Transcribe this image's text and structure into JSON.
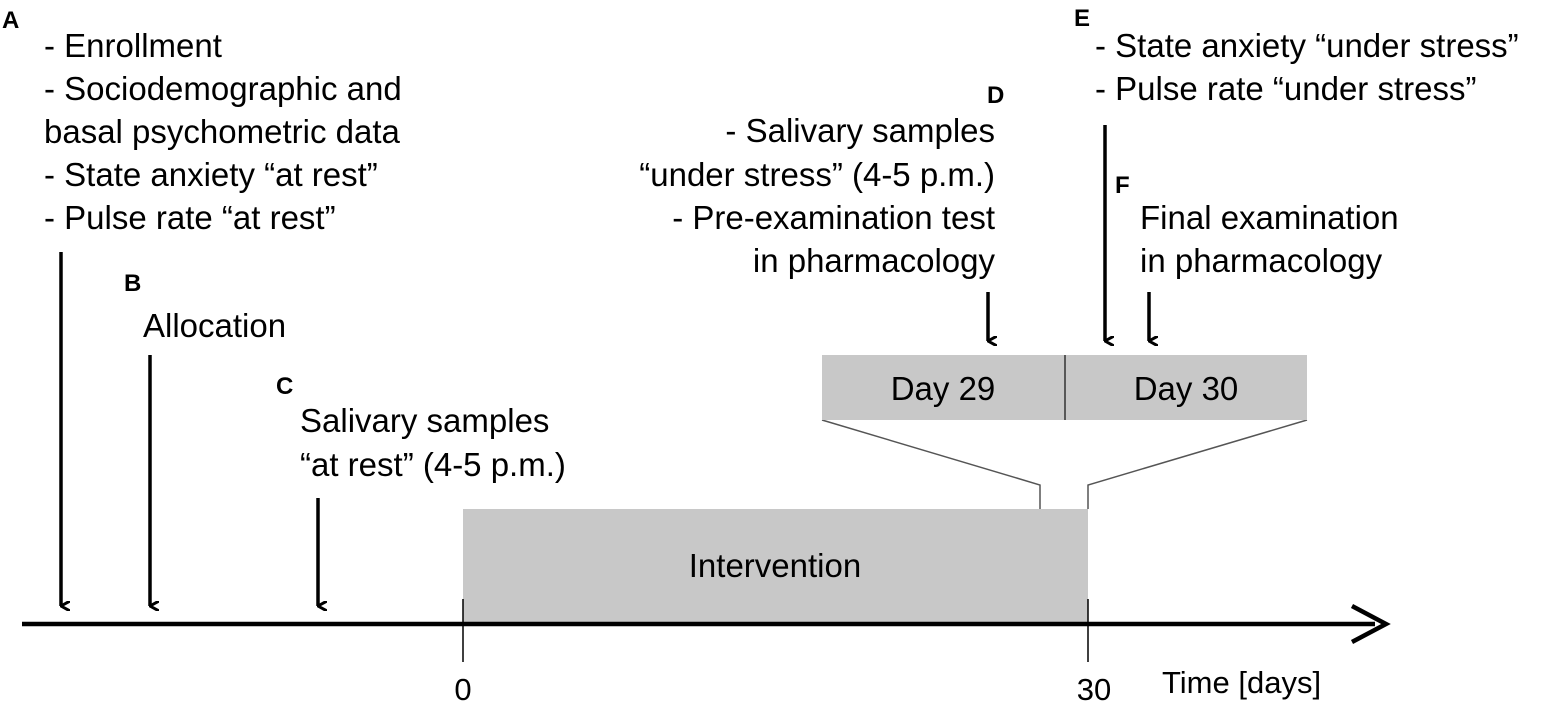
{
  "panels": {
    "A": {
      "letter": "A",
      "lines": [
        "- Enrollment",
        "- Sociodemographic and",
        "basal psychometric data",
        "- State anxiety “at rest”",
        "- Pulse rate “at rest”"
      ]
    },
    "B": {
      "letter": "B",
      "lines": [
        "Allocation"
      ]
    },
    "C": {
      "letter": "C",
      "lines": [
        "Salivary samples",
        "“at rest” (4-5 p.m.)"
      ]
    },
    "D": {
      "letter": "D",
      "lines": [
        "- Salivary samples",
        "“under stress” (4-5 p.m.)",
        "- Pre-examination test",
        "in pharmacology"
      ]
    },
    "E": {
      "letter": "E",
      "lines": [
        "- State anxiety “under stress”",
        "- Pulse rate “under stress”"
      ]
    },
    "F": {
      "letter": "F",
      "lines": [
        "Final examination",
        "in pharmacology"
      ]
    }
  },
  "boxes": {
    "intervention": "Intervention",
    "day29": "Day 29",
    "day30": "Day 30"
  },
  "axis": {
    "tick_start": "0",
    "tick_end": "30",
    "label": "Time [days]"
  },
  "colors": {
    "box_fill": "#c8c8c8",
    "line": "#000000",
    "connector": "#555555"
  }
}
